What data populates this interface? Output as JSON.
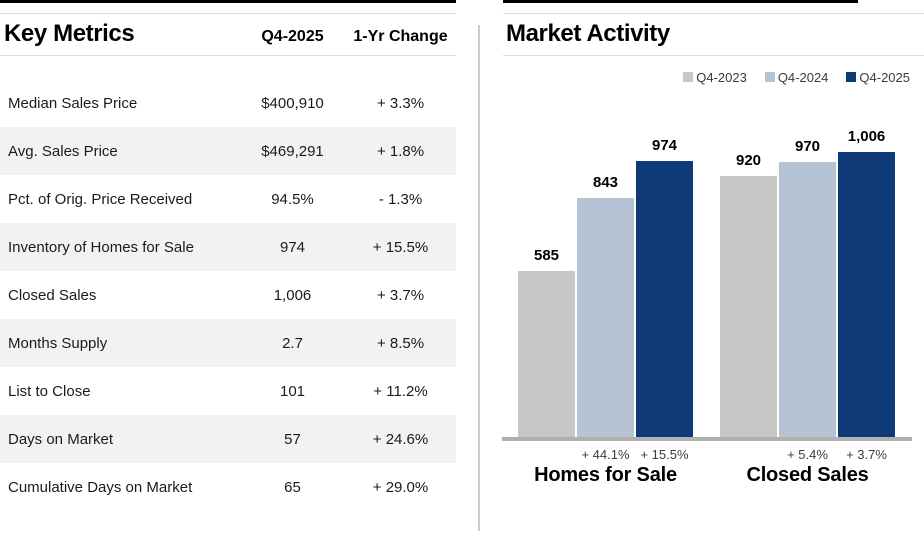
{
  "left_panel": {
    "title": "Key Metrics",
    "columns": [
      "Q4-2025",
      "1-Yr Change"
    ],
    "rows": [
      {
        "label": "Median Sales Price",
        "value": "$400,910",
        "change": "+ 3.3%"
      },
      {
        "label": "Avg. Sales Price",
        "value": "$469,291",
        "change": "+ 1.8%"
      },
      {
        "label": "Pct. of Orig. Price Received",
        "value": "94.5%",
        "change": "- 1.3%"
      },
      {
        "label": "Inventory of Homes for Sale",
        "value": "974",
        "change": "+ 15.5%"
      },
      {
        "label": "Closed Sales",
        "value": "1,006",
        "change": "+ 3.7%"
      },
      {
        "label": "Months Supply",
        "value": "2.7",
        "change": "+ 8.5%"
      },
      {
        "label": "List to Close",
        "value": "101",
        "change": "+ 11.2%"
      },
      {
        "label": "Days on Market",
        "value": "57",
        "change": "+ 24.6%"
      },
      {
        "label": "Cumulative Days on Market",
        "value": "65",
        "change": "+ 29.0%"
      }
    ]
  },
  "right_panel": {
    "title": "Market Activity",
    "legend": [
      {
        "label": "Q4-2023",
        "color": "#c7c7c7"
      },
      {
        "label": "Q4-2024",
        "color": "#b6c3d5"
      },
      {
        "label": "Q4-2025",
        "color": "#0f3a78"
      }
    ]
  },
  "chart_data": {
    "type": "bar",
    "title": "Market Activity",
    "categories": [
      "Homes for Sale",
      "Closed Sales"
    ],
    "series": [
      {
        "name": "Q4-2023",
        "color": "#c7c7c7",
        "values": [
          585,
          920
        ],
        "labels": [
          "585",
          "920"
        ],
        "pct_change": [
          null,
          null
        ]
      },
      {
        "name": "Q4-2024",
        "color": "#b6c3d5",
        "values": [
          843,
          970
        ],
        "labels": [
          "843",
          "970"
        ],
        "pct_change": [
          "+ 44.1%",
          "+ 5.4%"
        ]
      },
      {
        "name": "Q4-2025",
        "color": "#0f3a78",
        "values": [
          974,
          1006
        ],
        "labels": [
          "974",
          "1,006"
        ],
        "pct_change": [
          "+ 15.5%",
          "+ 3.7%"
        ]
      }
    ],
    "ylim": [
      0,
      1006
    ],
    "grid": false,
    "legend_position": "top-right",
    "colors": {
      "axis_line": "#b0b0b0",
      "value_label": "#000000",
      "pct_label": "#3c3c3c"
    }
  }
}
